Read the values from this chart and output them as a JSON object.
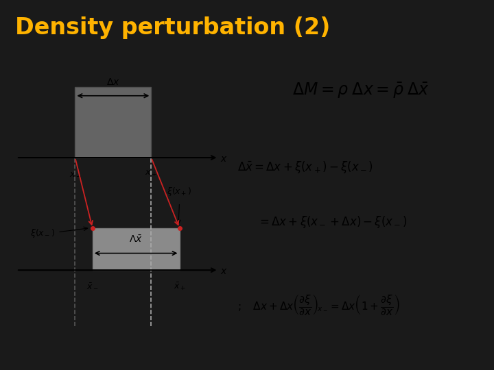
{
  "title": "Density perturbation (2)",
  "title_color": "#FFB300",
  "bg_color": "#1a1a2e",
  "title_bg": "#1a1a1a",
  "content_bg": "#FFFFFF",
  "formula_box_color": "#D4A017",
  "formula_box_edge": "#8B6914",
  "formula_text": "$\\Delta M = \\rho \\; \\Delta x = \\bar{\\rho} \\; \\Delta \\bar{x}$",
  "eq1": "$\\Delta \\bar{x} = \\Delta x + \\xi(x_+) - \\xi(x_-)$",
  "eq2": "$= \\Delta x + \\xi(x_- + \\Delta x) - \\xi(x_-)$",
  "eq3": "$;\\quad \\Delta x + \\Delta x \\left(\\dfrac{\\partial \\xi}{\\partial x}\\right)_{\\!x_-} = \\Delta x \\left(1 + \\dfrac{\\partial \\xi}{\\partial x}\\right)$",
  "gray_dark": "#777777",
  "gray_light": "#bbbbbb",
  "red_color": "#cc2222"
}
